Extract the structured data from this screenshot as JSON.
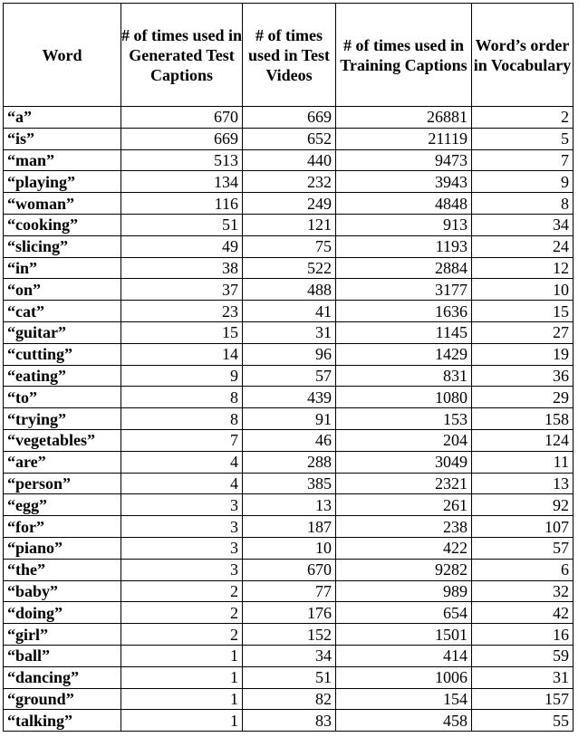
{
  "table": {
    "headers": [
      "Word",
      "# of times used in Generated Test Captions",
      "# of times used in Test Videos",
      "# of times used in Training Captions",
      "Word’s order in Vocabulary"
    ],
    "rows": [
      [
        "“a”",
        "670",
        "669",
        "26881",
        "2"
      ],
      [
        "“is”",
        "669",
        "652",
        "21119",
        "5"
      ],
      [
        "“man”",
        "513",
        "440",
        "9473",
        "7"
      ],
      [
        "“playing”",
        "134",
        "232",
        "3943",
        "9"
      ],
      [
        "“woman”",
        "116",
        "249",
        "4848",
        "8"
      ],
      [
        "“cooking”",
        "51",
        "121",
        "913",
        "34"
      ],
      [
        "“slicing”",
        "49",
        "75",
        "1193",
        "24"
      ],
      [
        "“in”",
        "38",
        "522",
        "2884",
        "12"
      ],
      [
        "“on”",
        "37",
        "488",
        "3177",
        "10"
      ],
      [
        "“cat”",
        "23",
        "41",
        "1636",
        "15"
      ],
      [
        "“guitar”",
        "15",
        "31",
        "1145",
        "27"
      ],
      [
        "“cutting”",
        "14",
        "96",
        "1429",
        "19"
      ],
      [
        "“eating”",
        "9",
        "57",
        "831",
        "36"
      ],
      [
        "“to”",
        "8",
        "439",
        "1080",
        "29"
      ],
      [
        "“trying”",
        "8",
        "91",
        "153",
        "158"
      ],
      [
        "“vegetables”",
        "7",
        "46",
        "204",
        "124"
      ],
      [
        "“are”",
        "4",
        "288",
        "3049",
        "11"
      ],
      [
        "“person”",
        "4",
        "385",
        "2321",
        "13"
      ],
      [
        "“egg”",
        "3",
        "13",
        "261",
        "92"
      ],
      [
        "“for”",
        "3",
        "187",
        "238",
        "107"
      ],
      [
        "“piano”",
        "3",
        "10",
        "422",
        "57"
      ],
      [
        "“the”",
        "3",
        "670",
        "9282",
        "6"
      ],
      [
        "“baby”",
        "2",
        "77",
        "989",
        "32"
      ],
      [
        "“doing”",
        "2",
        "176",
        "654",
        "42"
      ],
      [
        "“girl”",
        "2",
        "152",
        "1501",
        "16"
      ],
      [
        "“ball”",
        "1",
        "34",
        "414",
        "59"
      ],
      [
        "“dancing”",
        "1",
        "51",
        "1006",
        "31"
      ],
      [
        "“ground”",
        "1",
        "82",
        "154",
        "157"
      ],
      [
        "“talking”",
        "1",
        "83",
        "458",
        "55"
      ]
    ]
  }
}
